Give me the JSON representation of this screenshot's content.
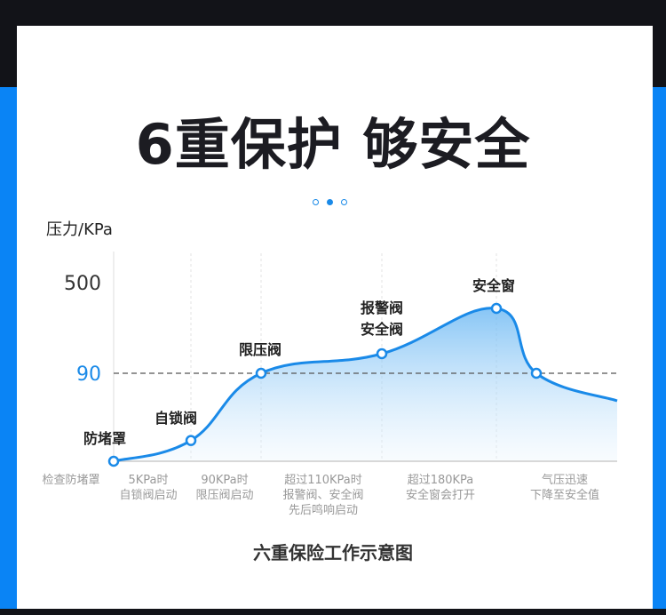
{
  "title": "6重保护 够安全",
  "pager": {
    "count": 3,
    "active": 1
  },
  "caption": "六重保险工作示意图",
  "colors": {
    "accent": "#1a8ae8",
    "side": "#0a84f5",
    "reference": "#1a8ae8"
  },
  "chart_data": {
    "type": "area",
    "ylabel": "压力/KPa",
    "yticks": [
      500,
      90
    ],
    "highlight_tick": 90,
    "reference_line": 90,
    "grid": "vertical-dashed",
    "points": [
      {
        "label": "防堵罩",
        "y": 0,
        "desc": [
          "检查防堵罩"
        ]
      },
      {
        "label": "自锁阀",
        "y": 5,
        "desc": [
          "5KPa时",
          "自锁阀启动"
        ]
      },
      {
        "label": "限压阀",
        "y": 90,
        "desc": [
          "90KPa时",
          "限压阀启动"
        ]
      },
      {
        "label": "报警阀\n安全阀",
        "y": 110,
        "desc": [
          "超过110KPa时",
          "报警阀、安全阀",
          "先后鸣响启动"
        ]
      },
      {
        "label": "安全窗",
        "y": 180,
        "desc": [
          "超过180KPa",
          "安全窗会打开"
        ]
      },
      {
        "label": "",
        "y": 90,
        "desc": [
          "气压迅速",
          "下降至安全值"
        ]
      }
    ]
  }
}
